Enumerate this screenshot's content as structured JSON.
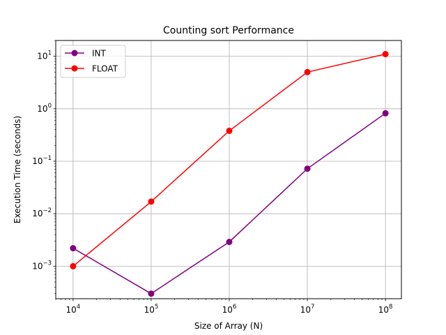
{
  "chart_data": {
    "type": "line",
    "title": "Counting sort Performance",
    "xlabel": "Size of Array (N)",
    "ylabel": "Execution Time (seconds)",
    "x_scale": "log",
    "y_scale": "log",
    "xlim": [
      6000,
      160000000
    ],
    "ylim": [
      0.00024,
      20
    ],
    "grid": true,
    "legend_position": "top-left",
    "x_ticks": [
      {
        "base": "10",
        "exp": "4",
        "value": 10000
      },
      {
        "base": "10",
        "exp": "5",
        "value": 100000
      },
      {
        "base": "10",
        "exp": "6",
        "value": 1000000
      },
      {
        "base": "10",
        "exp": "7",
        "value": 10000000
      },
      {
        "base": "10",
        "exp": "8",
        "value": 100000000
      }
    ],
    "y_ticks": [
      {
        "base": "10",
        "exp": "−3",
        "value": 0.001
      },
      {
        "base": "10",
        "exp": "−2",
        "value": 0.01
      },
      {
        "base": "10",
        "exp": "−1",
        "value": 0.1
      },
      {
        "base": "10",
        "exp": "0",
        "value": 1
      },
      {
        "base": "10",
        "exp": "1",
        "value": 10
      }
    ],
    "x": [
      10000,
      100000,
      1000000,
      10000000,
      100000000
    ],
    "series": [
      {
        "name": "INT",
        "color": "#800080",
        "values": [
          0.0022,
          0.0003,
          0.0029,
          0.072,
          0.82
        ]
      },
      {
        "name": "FLOAT",
        "color": "#ff0000",
        "values": [
          0.001,
          0.017,
          0.38,
          5.0,
          11.0
        ]
      }
    ]
  }
}
